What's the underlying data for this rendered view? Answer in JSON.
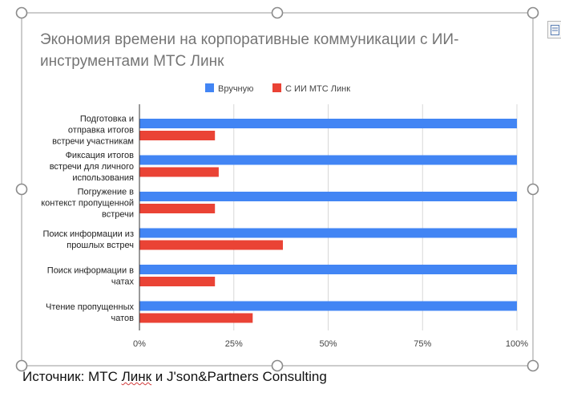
{
  "chart_data": {
    "type": "bar",
    "orientation": "horizontal",
    "title_lines": [
      "Экономия времени на корпоративные коммуникации с ИИ-",
      "инструментами МТС Линк"
    ],
    "categories": [
      {
        "name": "Подготовка и отправка итогов встречи участникам",
        "lines": [
          "Подготовка и",
          "отправка итогов",
          "встречи участникам"
        ]
      },
      {
        "name": "Фиксация итогов встречи для личного использования",
        "lines": [
          "Фиксация итогов",
          "встречи для личного",
          "использования"
        ]
      },
      {
        "name": "Погружение в контекст пропущенной встречи",
        "lines": [
          "Погружение в",
          "контекст пропущенной",
          "встречи"
        ]
      },
      {
        "name": "Поиск информации из прошлых встреч",
        "lines": [
          "Поиск информации из",
          "прошлых встреч"
        ]
      },
      {
        "name": "Поиск информации в чатах",
        "lines": [
          "Поиск информации в",
          "чатах"
        ]
      },
      {
        "name": "Чтение пропущенных чатов",
        "lines": [
          "Чтение пропущенных",
          "чатов"
        ]
      }
    ],
    "series": [
      {
        "name": "Вручную",
        "color": "#4285f4",
        "values": [
          100,
          100,
          100,
          100,
          100,
          100
        ]
      },
      {
        "name": "С ИИ МТС Линк",
        "color": "#ea4335",
        "values": [
          20,
          21,
          20,
          38,
          20,
          30
        ]
      }
    ],
    "xlim": [
      0,
      100
    ],
    "xticks": [
      {
        "value": 0,
        "label": "0%"
      },
      {
        "value": 25,
        "label": "25%"
      },
      {
        "value": 50,
        "label": "50%"
      },
      {
        "value": 75,
        "label": "75%"
      },
      {
        "value": 100,
        "label": "100%"
      }
    ],
    "grid": true,
    "legend": "top-center"
  },
  "source": {
    "prefix": "Источник: МТС ",
    "word": "Линк",
    "suffix": " и J'son&Partners Consulting"
  },
  "icons": {
    "side_toolbar": "layout-options-icon",
    "handles": "resize-handle-icon"
  }
}
